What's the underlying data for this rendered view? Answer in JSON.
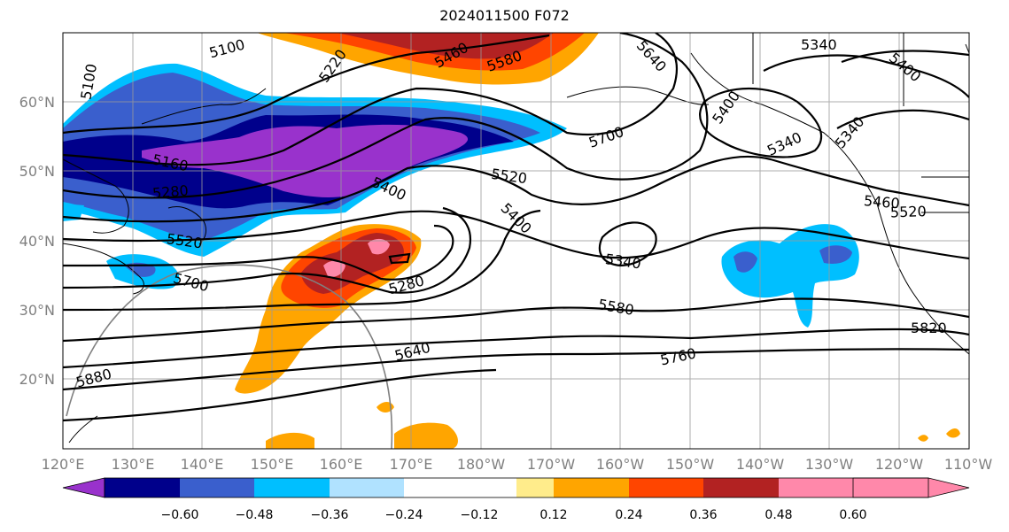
{
  "title": "2024011500 F072",
  "map": {
    "lon_ticks": [
      "120°E",
      "130°E",
      "140°E",
      "150°E",
      "160°E",
      "170°E",
      "180°W",
      "170°W",
      "160°W",
      "150°W",
      "140°W",
      "130°W",
      "120°W",
      "110°W"
    ],
    "lat_ticks": [
      "60°N",
      "50°N",
      "40°N",
      "30°N",
      "20°N"
    ],
    "contour_labels": [
      "5100",
      "5100",
      "5220",
      "5460",
      "5580",
      "5640",
      "5340",
      "5400",
      "5400",
      "5340",
      "5340",
      "5700",
      "5160",
      "5280",
      "5520",
      "5400",
      "5400",
      "5520",
      "5460",
      "5340",
      "5280",
      "5520",
      "5700",
      "5580",
      "5640",
      "5760",
      "5820",
      "5880"
    ],
    "colorbar": {
      "colors": [
        "#9932cc",
        "#00008b",
        "#3a5fcd",
        "#00bfff",
        "#b0e2ff",
        "#ffffff",
        "#ffffff",
        "#ffec8b",
        "#ffa500",
        "#ff4500",
        "#b22222",
        "#ff88aa"
      ],
      "labels": [
        "−0.60",
        "−0.48",
        "−0.36",
        "−0.24",
        "−0.12",
        "0.12",
        "0.24",
        "0.36",
        "0.48",
        "0.60"
      ]
    }
  }
}
